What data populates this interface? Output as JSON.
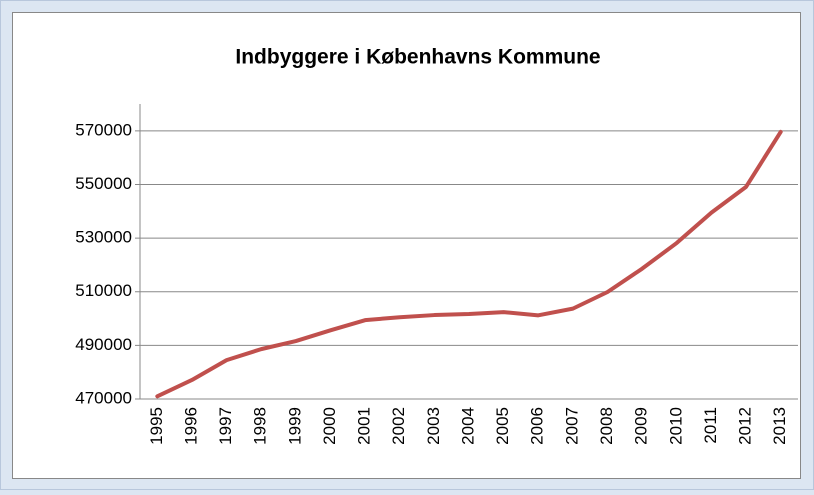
{
  "chart_data": {
    "type": "line",
    "title": "Indbyggere i Københavns Kommune",
    "categories": [
      "1995",
      "1996",
      "1997",
      "1998",
      "1999",
      "2000",
      "2001",
      "2002",
      "2003",
      "2004",
      "2005",
      "2006",
      "2007",
      "2008",
      "2009",
      "2010",
      "2011",
      "2012",
      "2013"
    ],
    "series": [
      {
        "name": "Indbyggere",
        "color": "#c0504d",
        "values": [
          471000,
          477100,
          484500,
          488600,
          491600,
          495600,
          499400,
          500500,
          501300,
          501700,
          502400,
          501200,
          503700,
          509900,
          518600,
          528200,
          539500,
          549100,
          569600
        ]
      }
    ],
    "ylim": [
      470000,
      580000
    ],
    "yticks": [
      470000,
      490000,
      510000,
      530000,
      550000,
      570000
    ],
    "grid": true
  }
}
